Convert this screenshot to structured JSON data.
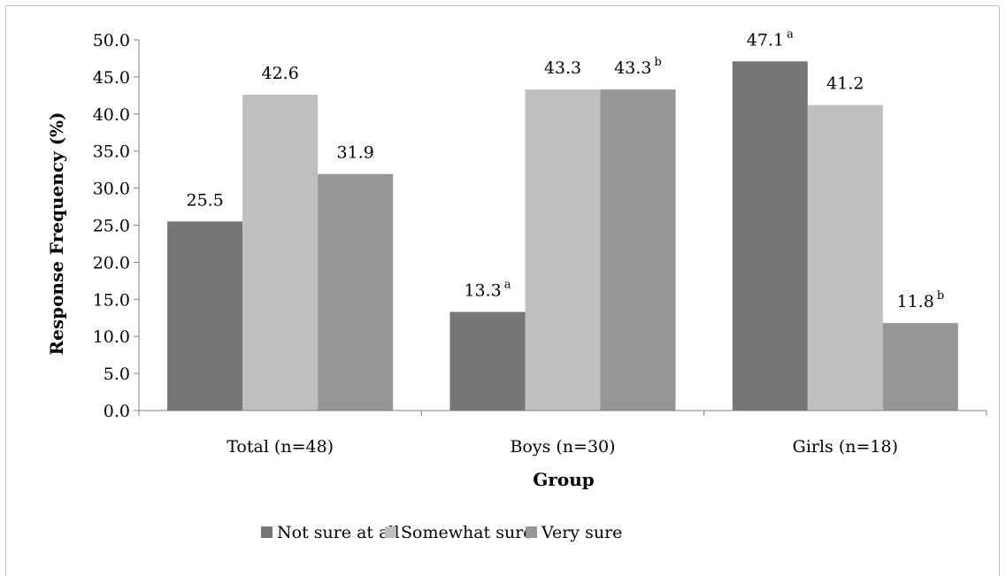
{
  "chart_data": {
    "type": "bar",
    "xlabel": "Group",
    "ylabel": "Response Frequency (%)",
    "ylim": [
      0,
      50
    ],
    "yticks": [
      "0.0",
      "5.0",
      "10.0",
      "15.0",
      "20.0",
      "25.0",
      "30.0",
      "35.0",
      "40.0",
      "45.0",
      "50.0"
    ],
    "categories": [
      "Total (n=48)",
      "Boys (n=30)",
      "Girls (n=18)"
    ],
    "series": [
      {
        "name": "Not sure at all",
        "color": "#767676",
        "values": [
          25.5,
          13.3,
          47.1
        ],
        "labels": [
          "25.5",
          "13.3",
          "47.1"
        ],
        "superscripts": [
          "",
          "a",
          "a"
        ]
      },
      {
        "name": "Somewhat sure",
        "color": "#bfbfbf",
        "values": [
          42.6,
          43.3,
          41.2
        ],
        "labels": [
          "42.6",
          "43.3",
          "41.2"
        ],
        "superscripts": [
          "",
          "",
          ""
        ]
      },
      {
        "name": "Very sure",
        "color": "#969696",
        "values": [
          31.9,
          43.3,
          11.8
        ],
        "labels": [
          "31.9",
          "43.3",
          "11.8"
        ],
        "superscripts": [
          "",
          "b",
          "b"
        ]
      }
    ],
    "grid": false,
    "legend_position": "bottom"
  }
}
